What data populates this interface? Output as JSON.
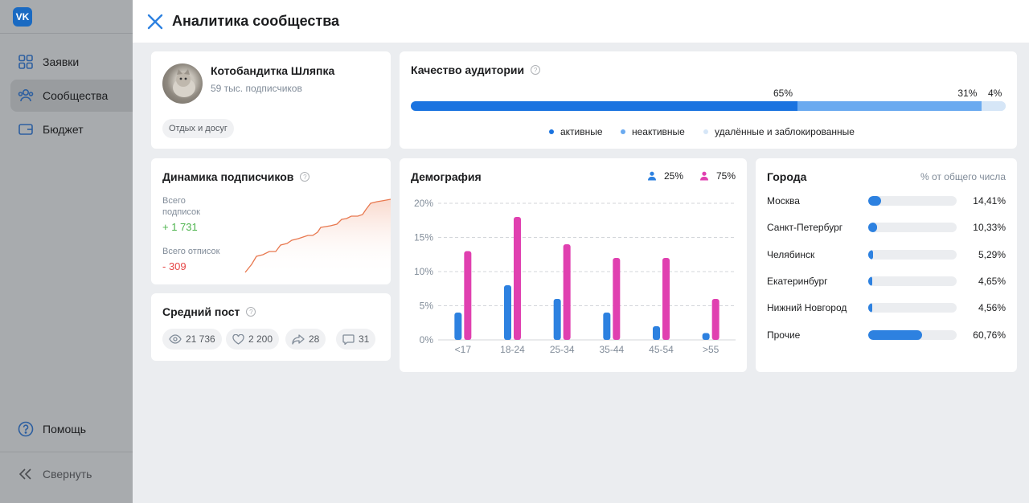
{
  "sidebar": {
    "logo": "VK",
    "items": [
      {
        "label": "Заявки",
        "icon": "grid-icon"
      },
      {
        "label": "Сообщества",
        "icon": "users-icon"
      },
      {
        "label": "Бюджет",
        "icon": "wallet-icon"
      }
    ],
    "help_label": "Помощь",
    "collapse_label": "Свернуть"
  },
  "modal": {
    "title": "Аналитика сообщества"
  },
  "community": {
    "name": "Котобандитка Шляпка",
    "subscribers": "59 тыс. подписчиков",
    "tag": "Отдых и досуг"
  },
  "audience_quality": {
    "title": "Качество аудитории",
    "segments": [
      {
        "label": "активные",
        "percent": 65,
        "percent_label": "65%",
        "color": "#1a73e0"
      },
      {
        "label": "неактивные",
        "percent": 31,
        "percent_label": "31%",
        "color": "#6aaaf0"
      },
      {
        "label": "удалённые и заблокированные",
        "percent": 4,
        "percent_label": "4%",
        "color": "#d6e6f7"
      }
    ]
  },
  "dynamics": {
    "title": "Динамика подписчиков",
    "total_subs_label": "Всего подписок",
    "total_subs_value": "+ 1 731",
    "total_unsubs_label": "Всего отписок",
    "total_unsubs_value": "- 309"
  },
  "avg_post": {
    "title": "Средний пост",
    "views": "21 736",
    "likes": "2 200",
    "shares": "28",
    "comments": "31"
  },
  "demography": {
    "title": "Демография",
    "male_label": "25%",
    "female_label": "75%",
    "male_color": "#2d81e0",
    "female_color": "#e040b0"
  },
  "chart_data": {
    "type": "bar",
    "categories": [
      "<17",
      "18-24",
      "25-34",
      "35-44",
      "45-54",
      ">55"
    ],
    "series": [
      {
        "values": [
          4,
          8,
          6,
          4,
          2,
          1
        ]
      },
      {
        "values": [
          13,
          18,
          14,
          12,
          12,
          6
        ]
      }
    ],
    "y_ticks": [
      "20%",
      "15%",
      "10%",
      "5%",
      "0%"
    ],
    "ylim": [
      0,
      20
    ],
    "grid": true
  },
  "cities": {
    "title": "Города",
    "subtitle": "% от общего числа",
    "items": [
      {
        "name": "Москва",
        "value": 14.41,
        "label": "14,41%"
      },
      {
        "name": "Санкт-Петербург",
        "value": 10.33,
        "label": "10,33%"
      },
      {
        "name": "Челябинск",
        "value": 5.29,
        "label": "5,29%"
      },
      {
        "name": "Екатеринбург",
        "value": 4.65,
        "label": "4,65%"
      },
      {
        "name": "Нижний Новгород",
        "value": 4.56,
        "label": "4,56%"
      },
      {
        "name": "Прочие",
        "value": 60.76,
        "label": "60,76%"
      }
    ]
  }
}
